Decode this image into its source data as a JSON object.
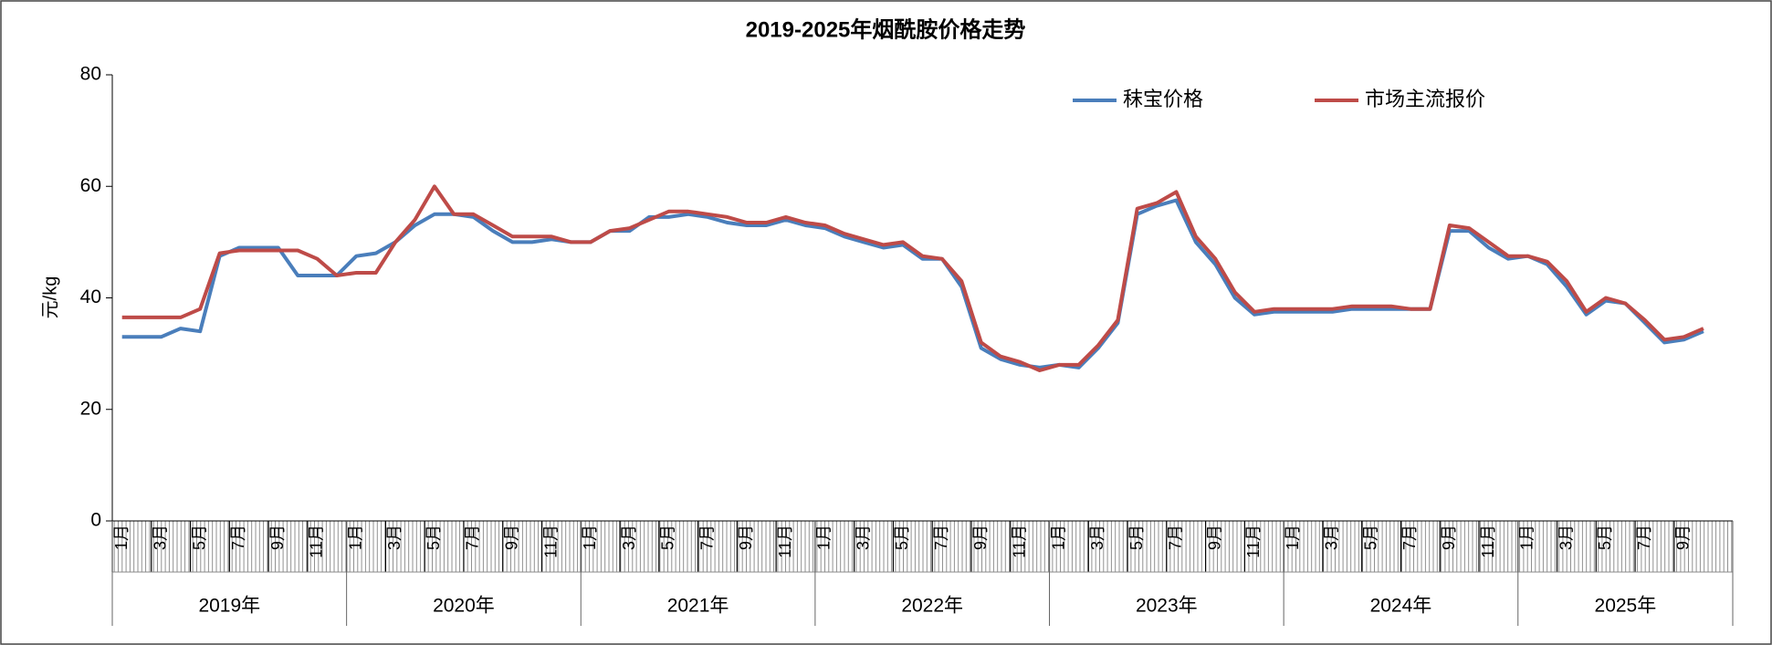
{
  "chart_data": {
    "type": "line",
    "title": "2019-2025年烟酰胺价格走势",
    "y_label": "元/kg",
    "categories": [
      "1月",
      null,
      "3月",
      null,
      "5月",
      null,
      "7月",
      null,
      "9月",
      null,
      "11月",
      null,
      "1月",
      null,
      "3月",
      null,
      "5月",
      null,
      "7月",
      null,
      "9月",
      null,
      "11月",
      null,
      "1月",
      null,
      "3月",
      null,
      "5月",
      null,
      "7月",
      null,
      "9月",
      null,
      "11月",
      null,
      "1月",
      null,
      "3月",
      null,
      "5月",
      null,
      "7月",
      null,
      "9月",
      null,
      "11月",
      null,
      "1月",
      null,
      "3月",
      null,
      "5月",
      null,
      "7月",
      null,
      "9月",
      null,
      "11月",
      null,
      "1月",
      null,
      "3月",
      null,
      "5月",
      null,
      "7月",
      null,
      "9月",
      null,
      "11月",
      null,
      "1月",
      null,
      "3月",
      null,
      "5月",
      null,
      "7月",
      null,
      "9月",
      null
    ],
    "years": [
      "2019年",
      "2020年",
      "2021年",
      "2022年",
      "2023年",
      "2024年",
      "2025年"
    ],
    "series": [
      {
        "name": "秣宝价格",
        "color": "#4a7ebb",
        "values": [
          33,
          33,
          33,
          34.5,
          34,
          47.5,
          49,
          49,
          49,
          44,
          44,
          44,
          47.5,
          48,
          50,
          53,
          55,
          55,
          54.5,
          52,
          50,
          50,
          50.5,
          50,
          50,
          52,
          52,
          54.5,
          54.5,
          55,
          54.5,
          53.5,
          53,
          53,
          54,
          53,
          52.5,
          51,
          50,
          49,
          49.5,
          47,
          47,
          42,
          31,
          29,
          28,
          27.5,
          28,
          27.5,
          31,
          35.5,
          55,
          56.5,
          57.5,
          50,
          46,
          40,
          37,
          37.5,
          37.5,
          37.5,
          37.5,
          38,
          38,
          38,
          38,
          38,
          52,
          52,
          49,
          47,
          47.5,
          46,
          42,
          37,
          39.5,
          39,
          35.5,
          32,
          32.5,
          34
        ]
      },
      {
        "name": "市场主流报价",
        "color": "#be4b48",
        "values": [
          36.5,
          36.5,
          36.5,
          36.5,
          38,
          48,
          48.5,
          48.5,
          48.5,
          48.5,
          47,
          44,
          44.5,
          44.5,
          50,
          54,
          60,
          55,
          55,
          53,
          51,
          51,
          51,
          50,
          50,
          52,
          52.5,
          54,
          55.5,
          55.5,
          55,
          54.5,
          53.5,
          53.5,
          54.5,
          53.5,
          53,
          51.5,
          50.5,
          49.5,
          50,
          47.5,
          47,
          43,
          32,
          29.5,
          28.5,
          27,
          28,
          28,
          31.5,
          36,
          56,
          57,
          59,
          51,
          47,
          41,
          37.5,
          38,
          38,
          38,
          38,
          38.5,
          38.5,
          38.5,
          38,
          38,
          53,
          52.5,
          50,
          47.5,
          47.5,
          46.5,
          43,
          37.5,
          40,
          39,
          36,
          32.5,
          33,
          34.5
        ]
      }
    ],
    "ylim": [
      0,
      80
    ],
    "yticks": [
      0,
      20,
      40,
      60,
      80
    ],
    "grid": false,
    "legend": "top-right"
  }
}
